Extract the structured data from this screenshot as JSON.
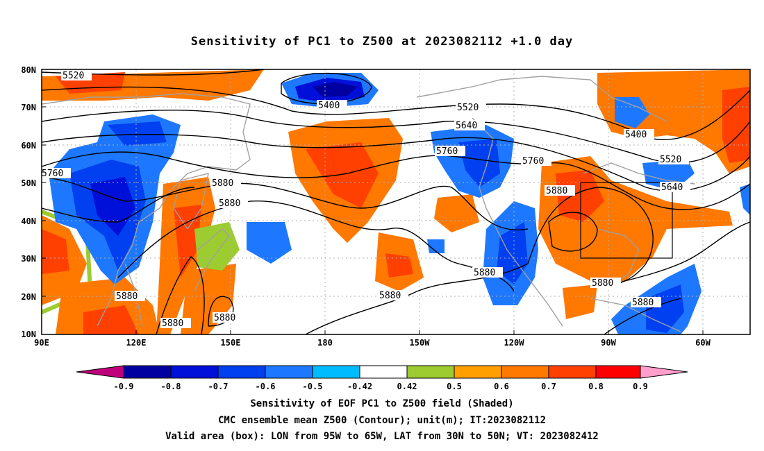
{
  "title": "Sensitivity of PC1 to Z500 at 2023082112 +1.0 day",
  "lat_labels": [
    "80N",
    "70N",
    "60N",
    "50N",
    "40N",
    "30N",
    "20N",
    "10N"
  ],
  "lon_labels": [
    "90E",
    "120E",
    "150E",
    "180",
    "150W",
    "120W",
    "90W",
    "60W"
  ],
  "contour_labels": [
    "5520",
    "5400",
    "5520",
    "5640",
    "5760",
    "5760",
    "5760",
    "5880",
    "5400",
    "5520",
    "5640",
    "5880",
    "5880",
    "5880",
    "5880",
    "5880",
    "5880",
    "5880",
    "5880",
    "5880"
  ],
  "colorbar": {
    "labels": [
      "-0.9",
      "-0.8",
      "-0.7",
      "-0.6",
      "-0.5",
      "-0.42",
      "0.42",
      "0.5",
      "0.6",
      "0.7",
      "0.8",
      "0.9"
    ],
    "colors": [
      "#c0007a",
      "#0000a0",
      "#0010d8",
      "#0040f0",
      "#1e78ff",
      "#00bcff",
      "#ffffff",
      "#9ccc30",
      "#ffa000",
      "#ff7800",
      "#ff4000",
      "#ff0000",
      "#ff9ecd"
    ]
  },
  "footer": {
    "line1": "Sensitivity of EOF PC1 to Z500 field (Shaded)",
    "line2": "CMC ensemble mean Z500 (Contour); unit(m); IT:2023082112",
    "line3": "Valid area (box): LON from 95W to 65W, LAT from 30N to 50N; VT: 2023082412"
  }
}
